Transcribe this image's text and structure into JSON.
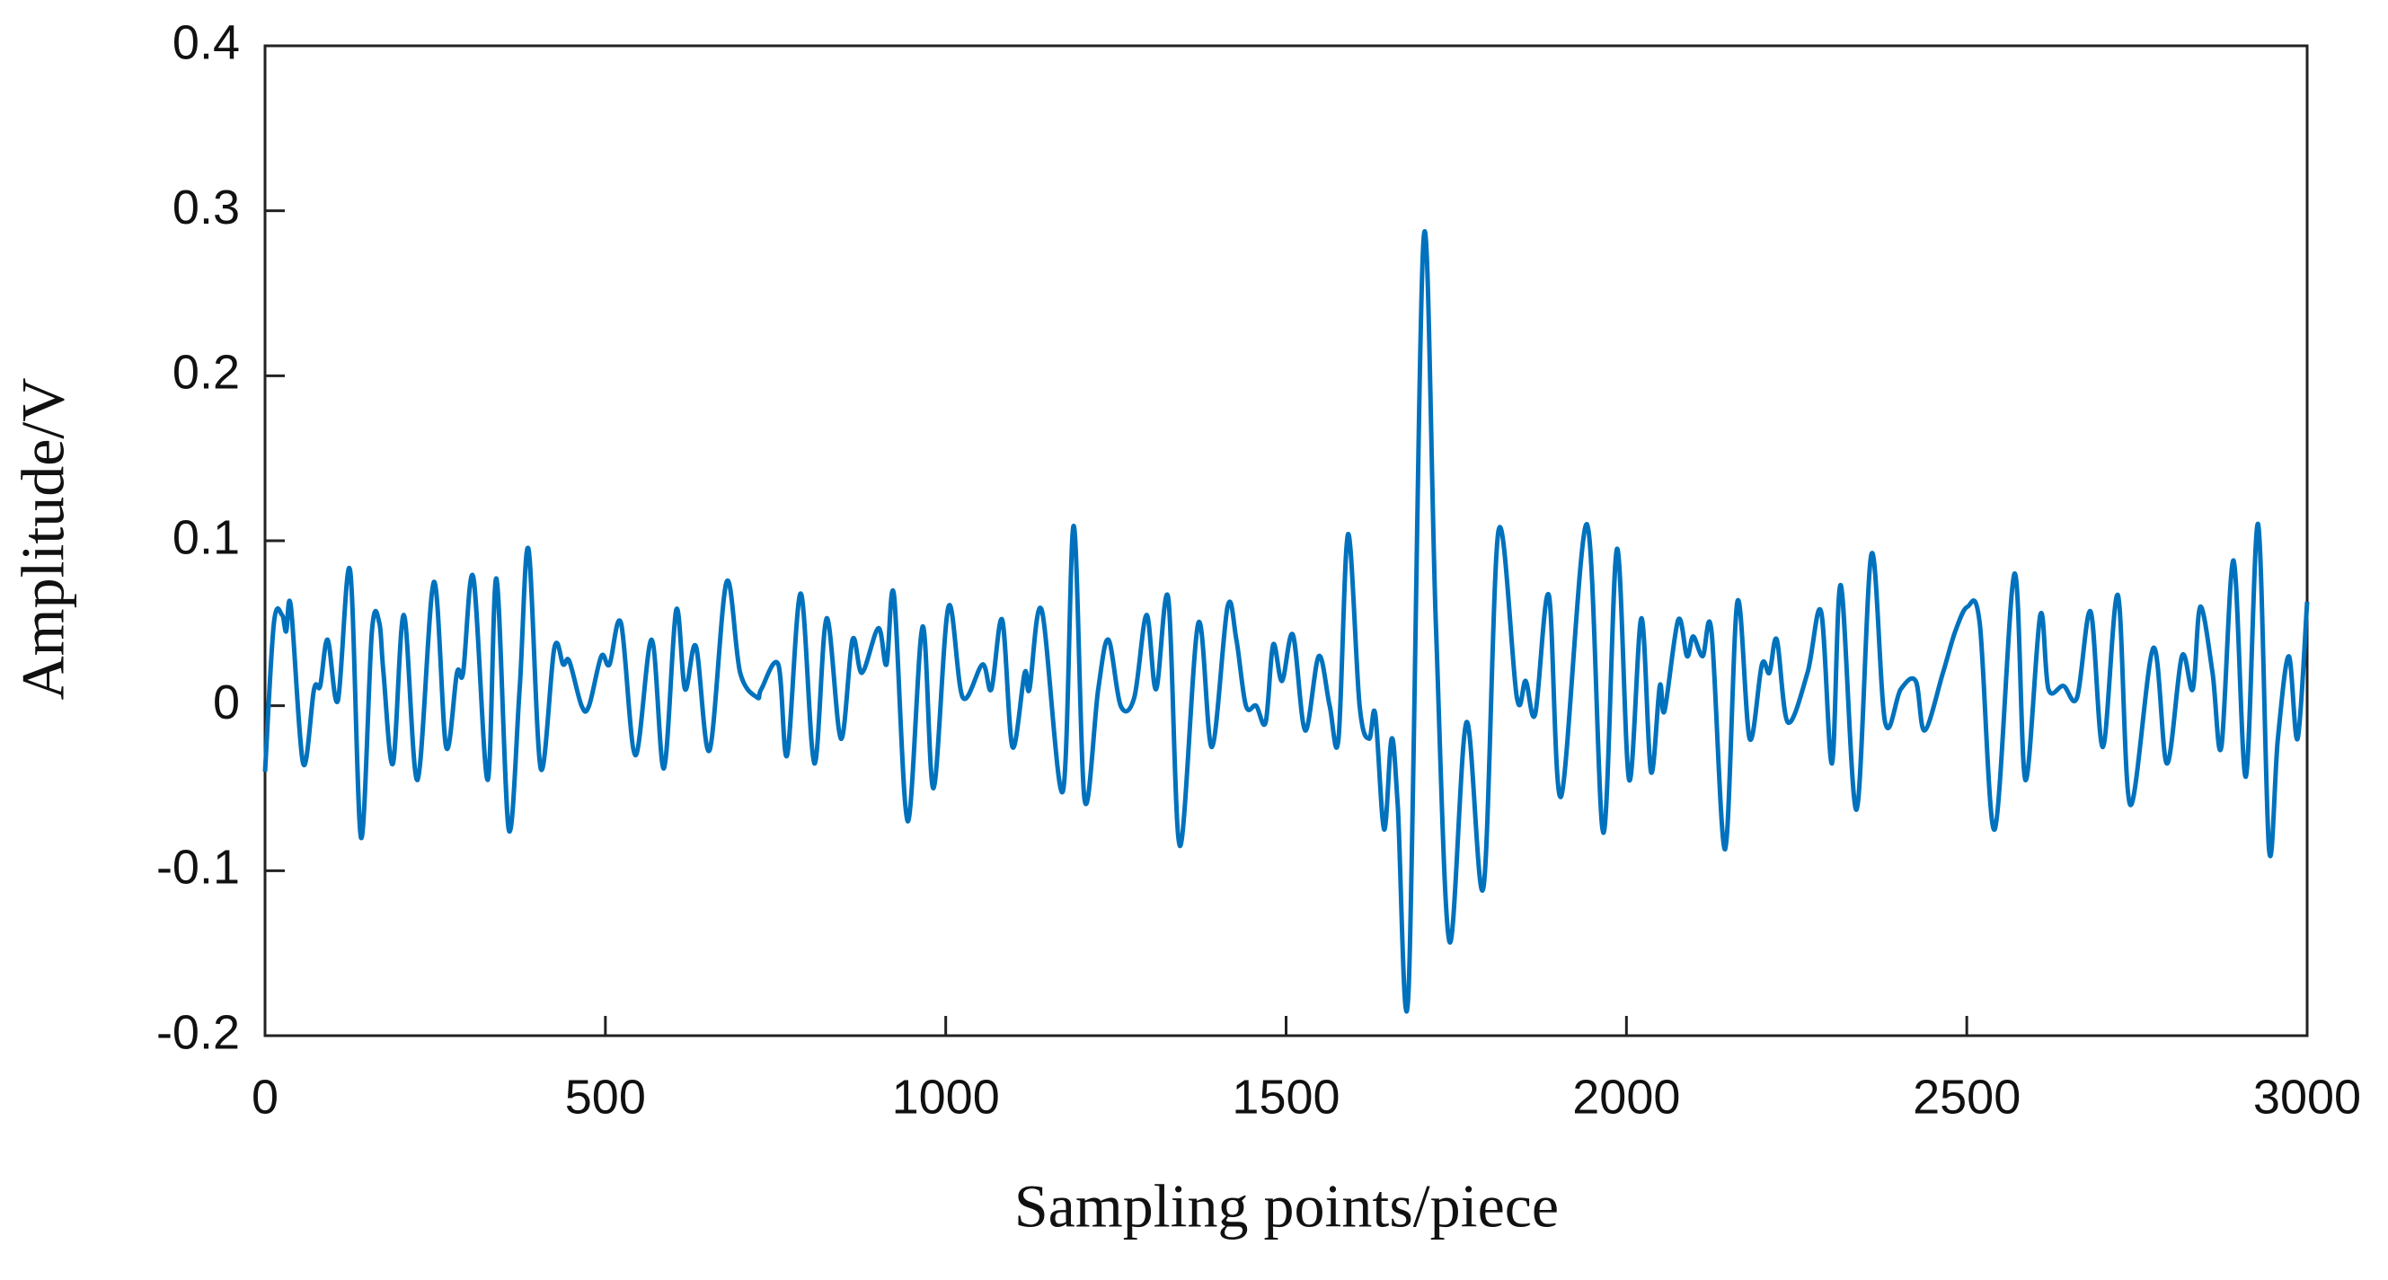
{
  "chart_data": {
    "type": "line",
    "x_label": "Sampling points/piece",
    "y_label": "Amplitude/V",
    "xlim": [
      0,
      3000
    ],
    "xticks": [
      0,
      500,
      1000,
      1500,
      2000,
      2500,
      3000
    ],
    "ylim": [
      -0.2,
      0.4
    ],
    "yticks": [
      -0.2,
      -0.1,
      0,
      0.1,
      0.2,
      0.3,
      0.4
    ],
    "grid": false,
    "series": [
      {
        "color": "#0072bd",
        "x": [
          0,
          13,
          25,
          31,
          38,
          56,
          72,
          81,
          92,
          107,
          125,
          141,
          157,
          168,
          174,
          188,
          204,
          224,
          248,
          266,
          282,
          291,
          306,
          327,
          340,
          358,
          374,
          387,
          405,
          425,
          438,
          447,
          465,
          476,
          494,
          506,
          523,
          544,
          568,
          586,
          604,
          617,
          633,
          653,
          678,
          698,
          723,
          729,
          754,
          767,
          787,
          807,
          825,
          846,
          863,
          877,
          901,
          913,
          924,
          944,
          966,
          982,
          1004,
          1025,
          1054,
          1067,
          1083,
          1098,
          1116,
          1123,
          1141,
          1172,
          1188,
          1204,
          1224,
          1239,
          1257,
          1277,
          1295,
          1309,
          1327,
          1344,
          1371,
          1391,
          1414,
          1427,
          1441,
          1456,
          1470,
          1481,
          1494,
          1510,
          1528,
          1548,
          1564,
          1577,
          1591,
          1608,
          1622,
          1631,
          1644,
          1655,
          1664,
          1680,
          1702,
          1720,
          1740,
          1765,
          1790,
          1812,
          1839,
          1852,
          1866,
          1886,
          1904,
          1942,
          1966,
          1986,
          2004,
          2022,
          2036,
          2049,
          2056,
          2076,
          2089,
          2098,
          2112,
          2125,
          2145,
          2163,
          2181,
          2199,
          2210,
          2221,
          2237,
          2266,
          2286,
          2302,
          2315,
          2338,
          2360,
          2380,
          2403,
          2425,
          2438,
          2465,
          2483,
          2501,
          2519,
          2541,
          2570,
          2586,
          2608,
          2620,
          2642,
          2662,
          2682,
          2700,
          2722,
          2740,
          2774,
          2794,
          2816,
          2832,
          2843,
          2861,
          2874,
          2892,
          2910,
          2928,
          2944,
          2957,
          2973,
          2986,
          3000
        ],
        "values": [
          -0.04,
          0.05,
          0.055,
          0.045,
          0.06,
          -0.035,
          0.01,
          0.012,
          0.04,
          0.003,
          0.082,
          -0.08,
          0.045,
          0.05,
          0.02,
          -0.035,
          0.055,
          -0.045,
          0.075,
          -0.025,
          0.02,
          0.02,
          0.078,
          -0.045,
          0.077,
          -0.075,
          0.01,
          0.095,
          -0.038,
          0.035,
          0.025,
          0.027,
          0,
          0,
          0.03,
          0.025,
          0.05,
          -0.03,
          0.04,
          -0.038,
          0.058,
          0.01,
          0.036,
          -0.027,
          0.075,
          0.02,
          0.005,
          0.01,
          0.025,
          -0.03,
          0.068,
          -0.035,
          0.053,
          -0.02,
          0.04,
          0.02,
          0.047,
          0.025,
          0.067,
          -0.07,
          0.048,
          -0.05,
          0.06,
          0.005,
          0.025,
          0.01,
          0.052,
          -0.025,
          0.02,
          0.01,
          0.058,
          -0.052,
          0.109,
          -0.057,
          0.01,
          0.04,
          0,
          0.005,
          0.055,
          0.01,
          0.065,
          -0.085,
          0.05,
          -0.025,
          0.06,
          0.04,
          0,
          0,
          -0.01,
          0.037,
          0.015,
          0.043,
          -0.015,
          0.03,
          0,
          -0.02,
          0.104,
          0,
          -0.02,
          -0.005,
          -0.075,
          -0.02,
          -0.06,
          -0.172,
          0.283,
          0.05,
          -0.143,
          -0.01,
          -0.11,
          0.106,
          0.005,
          0.015,
          -0.005,
          0.067,
          -0.055,
          0.11,
          -0.077,
          0.095,
          -0.045,
          0.053,
          -0.04,
          0.012,
          -0.003,
          0.052,
          0.03,
          0.042,
          0.03,
          0.045,
          -0.087,
          0.063,
          -0.02,
          0.025,
          0.02,
          0.04,
          -0.01,
          0.02,
          0.057,
          -0.035,
          0.073,
          -0.063,
          0.092,
          -0.01,
          0.01,
          0.015,
          -0.015,
          0.02,
          0.045,
          0.06,
          0.05,
          -0.075,
          0.08,
          -0.045,
          0.055,
          0.01,
          0.012,
          0.005,
          0.057,
          -0.025,
          0.067,
          -0.06,
          0.035,
          -0.035,
          0.03,
          0.01,
          0.06,
          0.02,
          -0.025,
          0.088,
          -0.043,
          0.11,
          -0.087,
          -0.02,
          0.03,
          -0.02,
          0.063
        ]
      }
    ]
  }
}
